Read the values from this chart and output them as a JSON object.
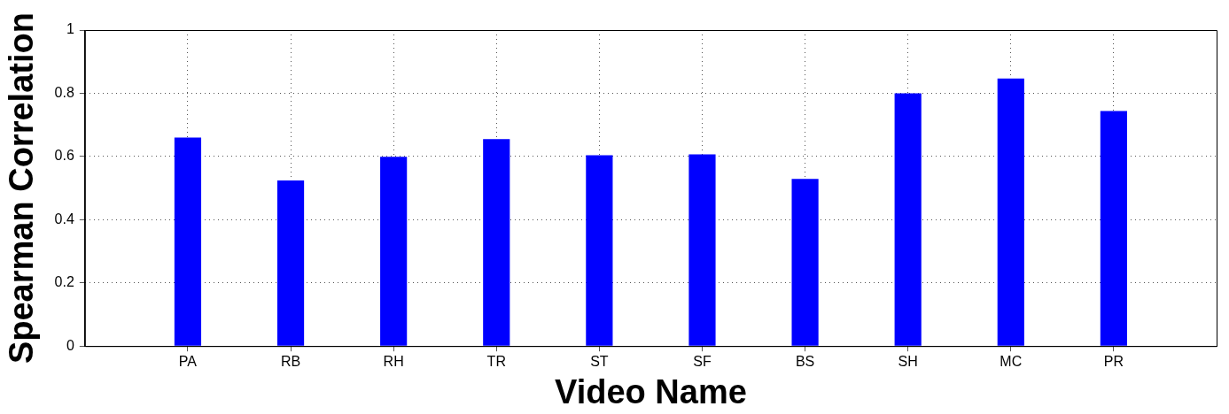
{
  "chart_data": {
    "type": "bar",
    "xlabel": "Video Name",
    "ylabel": "Spearman Correlation",
    "categories": [
      "PA",
      "RB",
      "RH",
      "TR",
      "ST",
      "SF",
      "BS",
      "SH",
      "MC",
      "PR"
    ],
    "values": [
      0.66,
      0.524,
      0.599,
      0.655,
      0.604,
      0.607,
      0.529,
      0.8,
      0.847,
      0.744
    ],
    "color": "#0000ff",
    "ylim": [
      0,
      1
    ],
    "yticks": [
      0,
      0.2,
      0.4,
      0.6,
      0.8,
      1
    ],
    "grid": true
  }
}
